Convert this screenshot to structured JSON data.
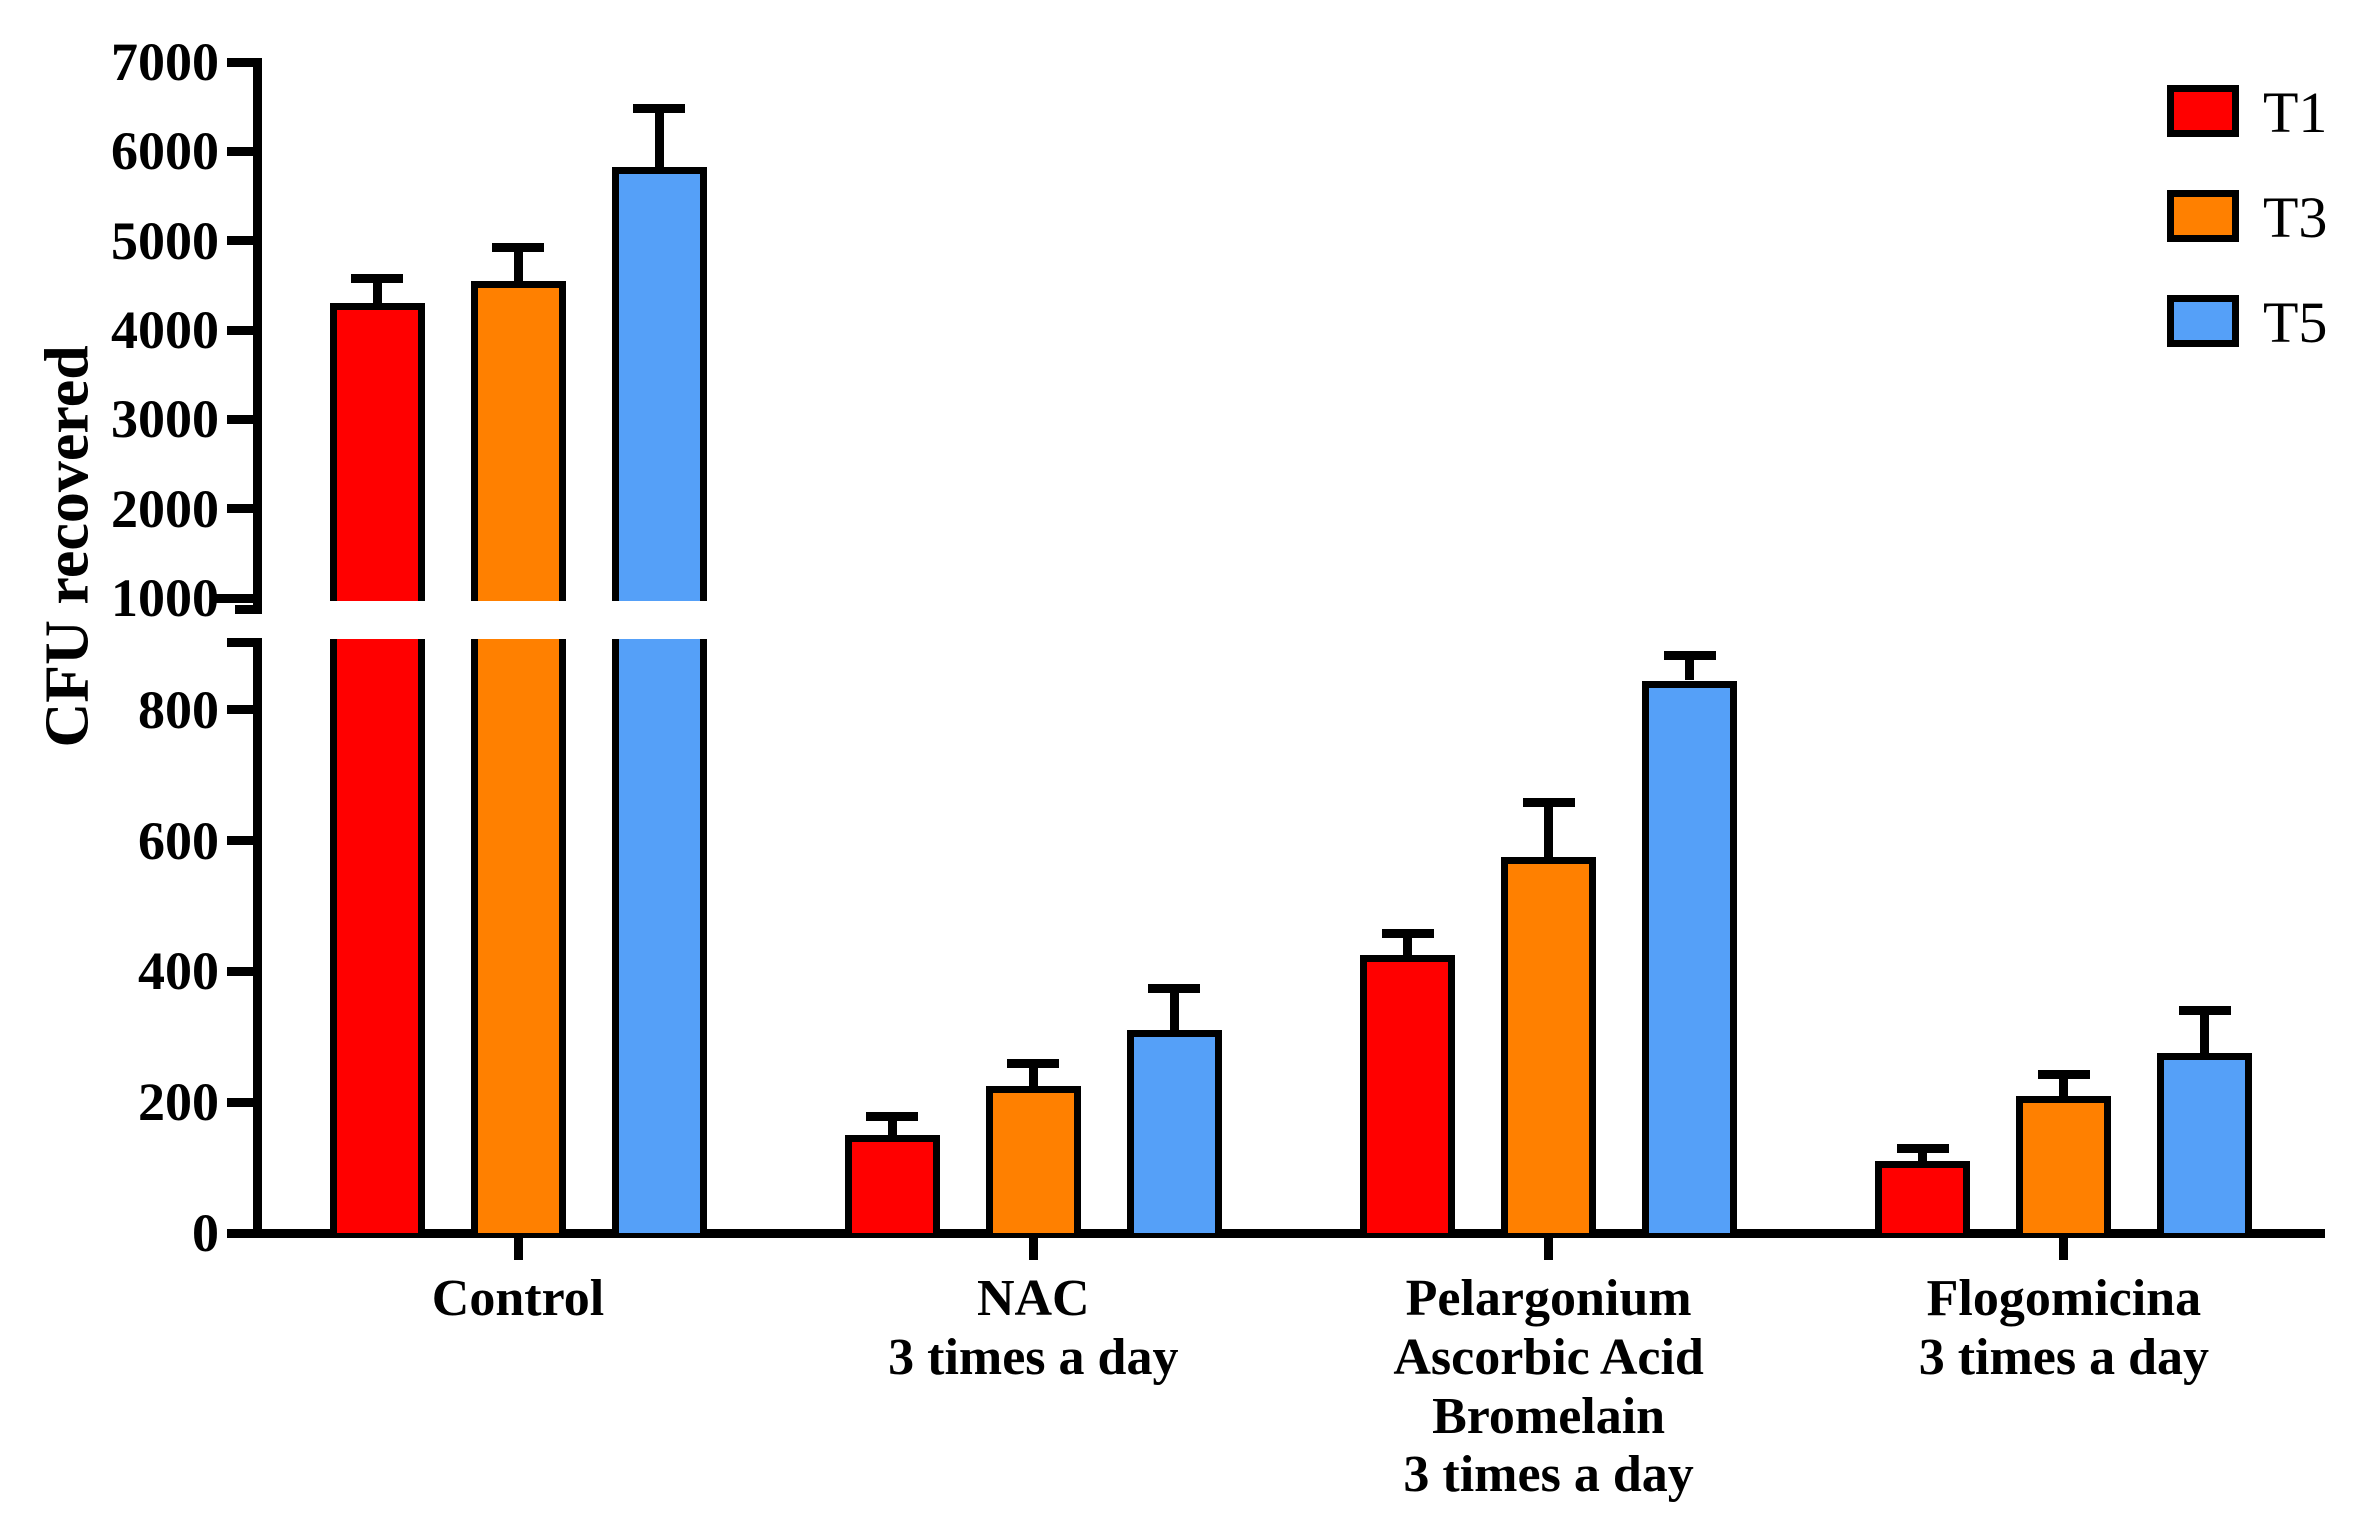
{
  "chart_data": {
    "type": "bar",
    "title": "",
    "ylabel": "CFU recovered",
    "xlabel": "",
    "grid": false,
    "legend_position": "top-right",
    "error_bars": "upper, capped",
    "bar_outline_color": "#000000",
    "background_color": "#FFFFFF",
    "categories": [
      {
        "label_lines": [
          "Control"
        ]
      },
      {
        "label_lines": [
          "NAC",
          "3 times a day"
        ]
      },
      {
        "label_lines": [
          "Pelargonium",
          "Ascorbic Acid",
          "Bromelain",
          "3 times a day"
        ]
      },
      {
        "label_lines": [
          "Flogomicina",
          "3 times a day"
        ]
      }
    ],
    "series": [
      {
        "name": "T1",
        "color": "#FF0000",
        "values": [
          4300,
          150,
          425,
          110
        ],
        "errors": [
          250,
          25,
          30,
          15
        ]
      },
      {
        "name": "T3",
        "color": "#FF8000",
        "values": [
          4550,
          225,
          575,
          210
        ],
        "errors": [
          350,
          30,
          80,
          28
        ]
      },
      {
        "name": "T5",
        "color": "#55A0F8",
        "values": [
          5825,
          310,
          845,
          275
        ],
        "errors": [
          625,
          60,
          35,
          62
        ]
      }
    ],
    "y_axis": {
      "broken": true,
      "lower_segment": {
        "range": [
          0,
          910
        ],
        "ticks": [
          0,
          200,
          400,
          600,
          800
        ]
      },
      "upper_segment": {
        "range": [
          1000,
          7000
        ],
        "ticks": [
          1000,
          2000,
          3000,
          4000,
          5000,
          6000,
          7000
        ]
      }
    }
  }
}
